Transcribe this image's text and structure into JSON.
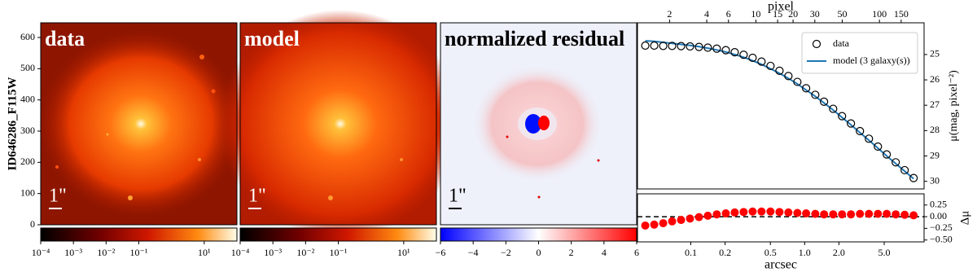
{
  "chart_data": [
    {
      "type": "image",
      "title": "data",
      "ylabel": "ID646286_F115W",
      "ylim": [
        0,
        647
      ],
      "yticks": [
        0,
        100,
        200,
        300,
        400,
        500,
        600
      ],
      "scalebar": "1\"",
      "colorbar": {
        "scale": "log",
        "lim": [
          0.0001,
          100
        ],
        "ticks": [
          {
            "value": 0.0001,
            "label": "10⁻⁴"
          },
          {
            "value": 0.001,
            "label": "10⁻³"
          },
          {
            "value": 0.01,
            "label": "10⁻²"
          },
          {
            "value": 0.1,
            "label": "10⁻¹"
          },
          {
            "value": 10,
            "label": "10¹"
          }
        ]
      }
    },
    {
      "type": "image",
      "title": "model",
      "scalebar": "1\"",
      "colorbar": {
        "scale": "log",
        "lim": [
          0.0001,
          100
        ],
        "ticks": [
          {
            "value": 0.0001,
            "label": "10⁻⁴"
          },
          {
            "value": 0.001,
            "label": "10⁻³"
          },
          {
            "value": 0.01,
            "label": "10⁻²"
          },
          {
            "value": 0.1,
            "label": "10⁻¹"
          },
          {
            "value": 10,
            "label": "10¹"
          }
        ]
      }
    },
    {
      "type": "image",
      "title": "normalized residual",
      "scalebar": "1\"",
      "colorbar": {
        "scale": "linear",
        "lim": [
          -6,
          6
        ],
        "ticks": [
          {
            "value": -6,
            "label": "−6"
          },
          {
            "value": -4,
            "label": "−4"
          },
          {
            "value": -2,
            "label": "−2"
          },
          0,
          2,
          4,
          6
        ]
      }
    },
    {
      "type": "profile",
      "xlabel": "arcsec",
      "x2label": "pixel",
      "ylabel": "μ(mag, pixel⁻²)",
      "residual_ylabel": "Δμ",
      "log_x": true,
      "x": [
        0.0398,
        0.0477,
        0.0572,
        0.0685,
        0.0821,
        0.0984,
        0.118,
        0.141,
        0.169,
        0.203,
        0.243,
        0.291,
        0.349,
        0.418,
        0.501,
        0.601,
        0.72,
        0.863,
        1.03,
        1.24,
        1.48,
        1.78,
        2.13,
        2.55,
        3.06,
        3.67,
        4.4,
        5.26,
        6.31,
        7.56,
        9.06
      ],
      "xlim": [
        0.034,
        11.2
      ],
      "xticks": [
        0.1,
        0.2,
        0.5,
        {
          "value": 1,
          "label": "1.0"
        },
        {
          "value": 2,
          "label": "2.0"
        },
        {
          "value": 5,
          "label": "5.0"
        }
      ],
      "x2lim": [
        1.1,
        230
      ],
      "x2ticks": [
        2,
        4,
        6,
        10,
        15,
        20,
        30,
        50,
        100,
        150
      ],
      "ylim": [
        30.3,
        23.75
      ],
      "yticks": [
        25,
        26,
        27,
        28,
        29,
        30
      ],
      "legend": "upper right",
      "series": [
        {
          "name": "data",
          "color": "#000000",
          "values": [
            24.65,
            24.65,
            24.66,
            24.66,
            24.67,
            24.68,
            24.7,
            24.73,
            24.77,
            24.83,
            24.91,
            25.01,
            25.13,
            25.28,
            25.45,
            25.64,
            25.85,
            26.08,
            26.33,
            26.59,
            26.86,
            27.14,
            27.43,
            27.72,
            28.02,
            28.32,
            28.63,
            28.94,
            29.25,
            29.56,
            29.87
          ]
        },
        {
          "name": "model (3 galaxy(s))",
          "color": "#1f77b4",
          "values": [
            24.46,
            24.48,
            24.52,
            24.56,
            24.6,
            24.64,
            24.69,
            24.75,
            24.82,
            24.9,
            25.0,
            25.11,
            25.24,
            25.39,
            25.56,
            25.74,
            25.94,
            26.16,
            26.4,
            26.65,
            26.91,
            27.19,
            27.48,
            27.77,
            28.08,
            28.38,
            28.69,
            29.0,
            29.3,
            29.6,
            29.9
          ]
        }
      ],
      "residual_color": "#ff0000",
      "residual_values": [
        -0.19,
        -0.17,
        -0.14,
        -0.1,
        -0.07,
        -0.04,
        -0.01,
        0.02,
        0.05,
        0.07,
        0.09,
        0.1,
        0.11,
        0.11,
        0.11,
        0.1,
        0.09,
        0.08,
        0.07,
        0.06,
        0.05,
        0.05,
        0.05,
        0.05,
        0.06,
        0.06,
        0.06,
        0.06,
        0.05,
        0.04,
        0.03
      ],
      "residual_ylim": [
        -0.54,
        0.49
      ],
      "residual_yticks": [
        0.25,
        {
          "value": 0,
          "label": "0.00"
        },
        {
          "value": -0.25,
          "label": "−0.25"
        },
        {
          "value": -0.5,
          "label": "−0.50"
        }
      ]
    }
  ]
}
